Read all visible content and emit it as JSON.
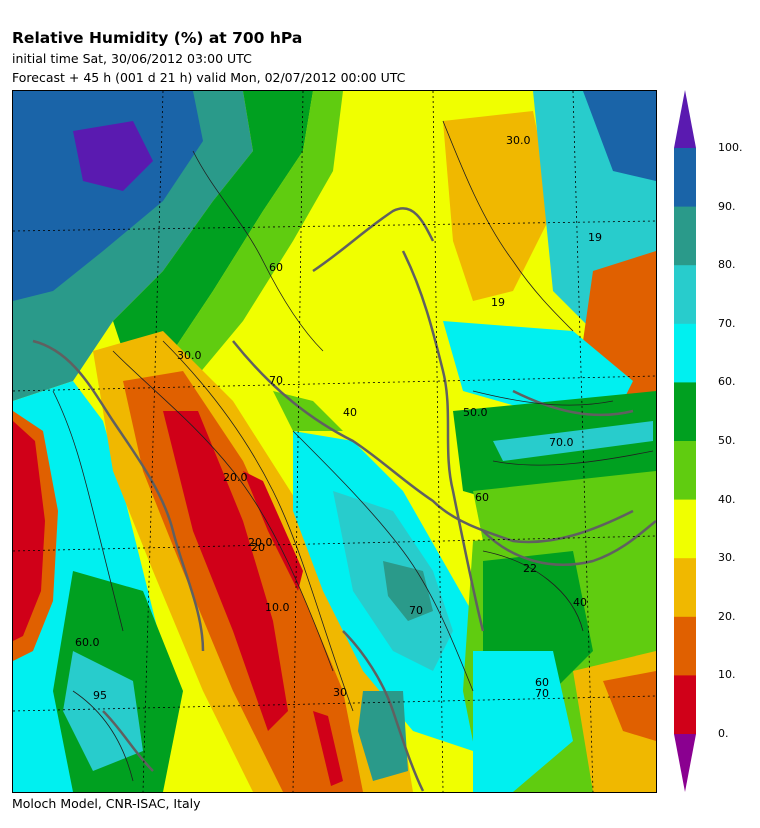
{
  "title": "Relative Humidity (%) at 700 hPa",
  "initial_time": "initial time  Sat, 30/06/2012  03:00 UTC",
  "forecast": "Forecast  +  45 h  (001 d 21 h)  valid Mon, 02/07/2012 00:00 UTC",
  "credit": "Moloch Model, CNR-ISAC, Italy",
  "legend": {
    "labels": [
      "100.",
      "90.",
      "80.",
      "70.",
      "60.",
      "50.",
      "40.",
      "30.",
      "20.",
      "10.",
      "0."
    ],
    "colors": [
      "#1a64a8",
      "#2a9a8a",
      "#28cccc",
      "#00f0f0",
      "#00a020",
      "#60cc10",
      "#f0ff00",
      "#f0b800",
      "#e06000",
      "#d00018"
    ],
    "top_arrow_color": "#5a1ab0",
    "bottom_arrow_color": "#8a0090"
  },
  "contour_labels": [
    "30.0",
    "19",
    "60",
    "30.0",
    "70",
    "20.0",
    "50.0",
    "40",
    "70.0",
    "20.0",
    "10.0",
    "20",
    "60",
    "22",
    "70",
    "40",
    "60.0",
    "95",
    "70",
    "60",
    "30",
    "19"
  ]
}
